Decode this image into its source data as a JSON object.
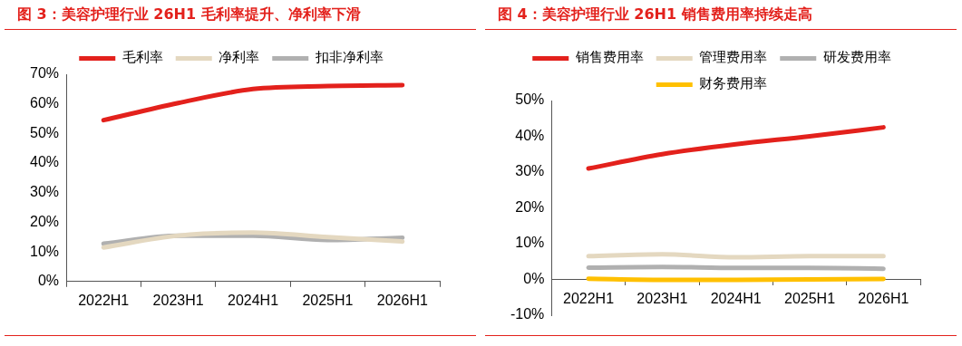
{
  "chart_data": [
    {
      "type": "line",
      "title": "图 3：美容护理行业 26H1 毛利率提升、净利率下滑",
      "categories": [
        "2022H1",
        "2023H1",
        "2024H1",
        "2025H1",
        "2026H1"
      ],
      "series": [
        {
          "name": "毛利率",
          "color": "#e3211c",
          "values": [
            54.5,
            60.3,
            65,
            66,
            66.3
          ]
        },
        {
          "name": "净利率",
          "color": "#e4d8c0",
          "values": [
            11.5,
            15.5,
            16.5,
            15,
            13.5
          ]
        },
        {
          "name": "扣非净利率",
          "color": "#b0b0b0",
          "values": [
            12.8,
            15.5,
            15.5,
            14,
            14.8
          ]
        }
      ],
      "ylim": [
        0,
        70
      ],
      "yticks": [
        {
          "value": 0,
          "label": "0%"
        },
        {
          "value": 10,
          "label": "10%"
        },
        {
          "value": 20,
          "label": "20%"
        },
        {
          "value": 30,
          "label": "30%"
        },
        {
          "value": 40,
          "label": "40%"
        },
        {
          "value": 50,
          "label": "50%"
        },
        {
          "value": 60,
          "label": "60%"
        },
        {
          "value": 70,
          "label": "70%"
        }
      ],
      "grid": false,
      "legend": "top",
      "marker": "none",
      "line_style": "solid"
    },
    {
      "type": "line",
      "title": "图 4：美容护理行业 26H1 销售费用率持续走高",
      "categories": [
        "2022H1",
        "2023H1",
        "2024H1",
        "2025H1",
        "2026H1"
      ],
      "series": [
        {
          "name": "销售费用率",
          "color": "#e3211c",
          "values": [
            31,
            35,
            37.8,
            40,
            42.5
          ]
        },
        {
          "name": "管理费用率",
          "color": "#e4d8c0",
          "values": [
            6.5,
            7,
            6.2,
            6.5,
            6.5
          ]
        },
        {
          "name": "研发费用率",
          "color": "#b0b0b0",
          "values": [
            3.3,
            3.5,
            3.2,
            3.2,
            3
          ]
        },
        {
          "name": "财务费用率",
          "color": "#ffc000",
          "values": [
            0.2,
            -0.1,
            -0.1,
            0,
            0.1
          ]
        }
      ],
      "ylim": [
        -10,
        50
      ],
      "yticks": [
        {
          "value": -10,
          "label": "-10%"
        },
        {
          "value": 0,
          "label": "0%"
        },
        {
          "value": 10,
          "label": "10%"
        },
        {
          "value": 20,
          "label": "20%"
        },
        {
          "value": 30,
          "label": "30%"
        },
        {
          "value": 40,
          "label": "40%"
        },
        {
          "value": 50,
          "label": "50%"
        }
      ],
      "grid": false,
      "legend": "top",
      "marker": "none",
      "line_style": "solid"
    }
  ]
}
